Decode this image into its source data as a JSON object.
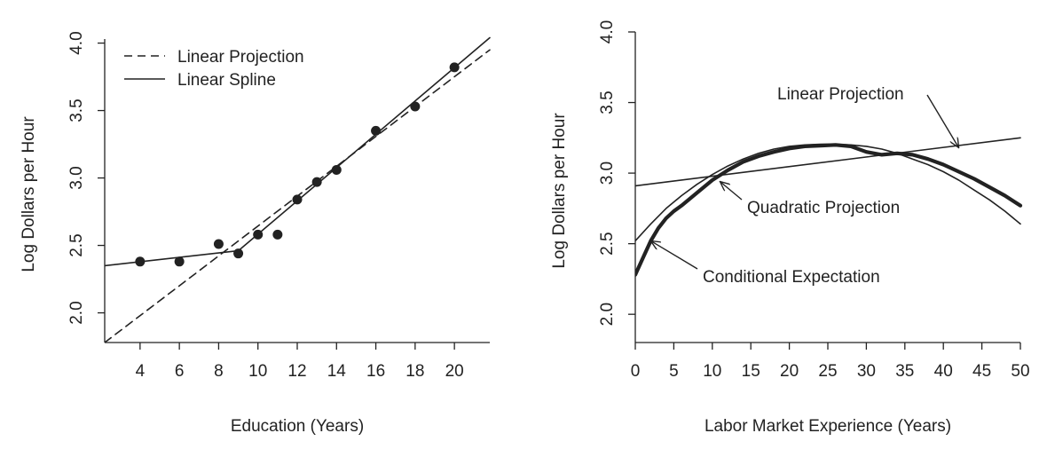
{
  "chart_data": [
    {
      "type": "line",
      "xlabel": "Education (Years)",
      "ylabel": "Log Dollars per Hour",
      "xlim": [
        2.2,
        21.8
      ],
      "ylim": [
        1.78,
        4.03
      ],
      "xticks": [
        "4",
        "6",
        "8",
        "10",
        "12",
        "14",
        "16",
        "18",
        "20"
      ],
      "yticks": [
        "2.0",
        "2.5",
        "3.0",
        "3.5",
        "4.0"
      ],
      "box": "left-bottom-open",
      "legend": {
        "position": "top-left",
        "entries": [
          {
            "label": "Linear Projection",
            "style": "dashed"
          },
          {
            "label": "Linear Spline",
            "style": "solid"
          }
        ]
      },
      "series": [
        {
          "name": "Linear Projection",
          "style": "dashed",
          "x": [
            2.2,
            21.8
          ],
          "y": [
            1.78,
            3.95
          ]
        },
        {
          "name": "Linear Spline",
          "style": "solid",
          "x": [
            2.2,
            9.0,
            21.8
          ],
          "y": [
            2.35,
            2.46,
            4.04
          ]
        }
      ],
      "points": {
        "x": [
          4,
          6,
          8,
          9,
          10,
          11,
          12,
          13,
          14,
          16,
          18,
          20
        ],
        "y": [
          2.38,
          2.38,
          2.51,
          2.44,
          2.58,
          2.58,
          2.84,
          2.97,
          3.06,
          3.35,
          3.53,
          3.82
        ]
      }
    },
    {
      "type": "line",
      "xlabel": "Labor Market Experience (Years)",
      "ylabel": "Log Dollars per Hour",
      "xlim": [
        0,
        50
      ],
      "ylim": [
        1.8,
        4.0
      ],
      "xticks": [
        "0",
        "5",
        "10",
        "15",
        "20",
        "25",
        "30",
        "35",
        "40",
        "45",
        "50"
      ],
      "yticks": [
        "2.0",
        "2.5",
        "3.0",
        "3.5",
        "4.0"
      ],
      "box": "left-bottom-open",
      "series": [
        {
          "name": "Linear Projection",
          "style": "thin",
          "x": [
            0,
            50
          ],
          "y": [
            2.91,
            3.25
          ]
        },
        {
          "name": "Quadratic Projection",
          "style": "thin",
          "x": [
            0,
            2,
            4,
            6,
            8,
            10,
            12,
            14,
            16,
            18,
            20,
            22,
            24,
            26,
            28,
            30,
            32,
            34,
            36,
            38,
            40,
            42,
            44,
            46,
            48,
            50
          ],
          "y": [
            2.52,
            2.64,
            2.75,
            2.84,
            2.92,
            2.99,
            3.05,
            3.1,
            3.14,
            3.17,
            3.19,
            3.2,
            3.205,
            3.205,
            3.2,
            3.19,
            3.17,
            3.14,
            3.1,
            3.06,
            3.01,
            2.95,
            2.88,
            2.81,
            2.73,
            2.64
          ]
        },
        {
          "name": "Conditional Expectation",
          "style": "thick",
          "x": [
            0,
            1,
            2,
            3,
            4,
            5,
            6,
            8,
            10,
            12,
            14,
            16,
            18,
            20,
            22,
            24,
            26,
            28,
            30,
            32,
            34,
            36,
            38,
            40,
            42,
            44,
            46,
            48,
            50
          ],
          "y": [
            2.28,
            2.4,
            2.52,
            2.61,
            2.68,
            2.73,
            2.77,
            2.86,
            2.95,
            3.02,
            3.08,
            3.12,
            3.15,
            3.175,
            3.19,
            3.195,
            3.2,
            3.19,
            3.15,
            3.13,
            3.14,
            3.13,
            3.1,
            3.06,
            3.01,
            2.96,
            2.9,
            2.84,
            2.77
          ]
        }
      ],
      "annotations": [
        {
          "text": "Linear Projection",
          "points_to": [
            42,
            3.18
          ]
        },
        {
          "text": "Quadratic Projection",
          "points_to": [
            11,
            2.94
          ]
        },
        {
          "text": "Conditional Expectation",
          "points_to": [
            2,
            2.52
          ]
        }
      ]
    }
  ]
}
